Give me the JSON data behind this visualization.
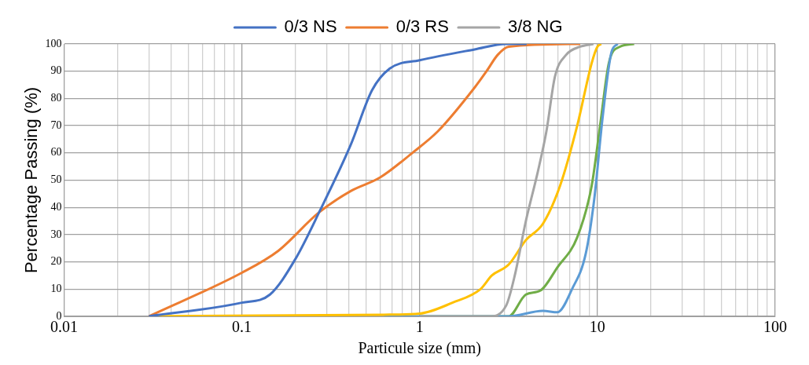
{
  "chart_data": {
    "type": "line",
    "xlabel": "Particule size (mm)",
    "ylabel": "Percentage Passing (%)",
    "log": "x",
    "xlim": [
      0.01,
      100
    ],
    "ylim": [
      0,
      100
    ],
    "xticks": [
      0.01,
      {
        "value": 0.02,
        "label": null
      },
      {
        "value": 0.03,
        "label": null
      },
      {
        "value": 0.04,
        "label": null
      },
      {
        "value": 0.05,
        "label": null
      },
      {
        "value": 0.06,
        "label": null
      },
      {
        "value": 0.07,
        "label": null
      },
      {
        "value": 0.08,
        "label": null
      },
      {
        "value": 0.09,
        "label": null
      },
      0.1,
      {
        "value": 0.2,
        "label": null
      },
      {
        "value": 0.3,
        "label": null
      },
      {
        "value": 0.4,
        "label": null
      },
      {
        "value": 0.5,
        "label": null
      },
      {
        "value": 0.6,
        "label": null
      },
      {
        "value": 0.7,
        "label": null
      },
      {
        "value": 0.8,
        "label": null
      },
      {
        "value": 0.9,
        "label": null
      },
      1,
      {
        "value": 2,
        "label": null
      },
      {
        "value": 3,
        "label": null
      },
      {
        "value": 4,
        "label": null
      },
      {
        "value": 5,
        "label": null
      },
      {
        "value": 6,
        "label": null
      },
      {
        "value": 7,
        "label": null
      },
      {
        "value": 8,
        "label": null
      },
      {
        "value": 9,
        "label": null
      },
      10,
      {
        "value": 20,
        "label": null
      },
      {
        "value": 30,
        "label": null
      },
      {
        "value": 40,
        "label": null
      },
      {
        "value": 50,
        "label": null
      },
      {
        "value": 60,
        "label": null
      },
      {
        "value": 70,
        "label": null
      },
      {
        "value": 80,
        "label": null
      },
      {
        "value": 90,
        "label": null
      },
      100
    ],
    "yticks": [
      0,
      10,
      20,
      30,
      40,
      50,
      60,
      70,
      80,
      90,
      100
    ],
    "grid": true,
    "legend": "top",
    "marker": "none",
    "line_style": "solid",
    "series": [
      {
        "name": "0/3 NS",
        "color": "#4472c4",
        "x": [
          0.03,
          0.1,
          0.144,
          0.2,
          0.276,
          0.41,
          0.54,
          0.68,
          1,
          2.04,
          3.07,
          4
        ],
        "values": [
          0,
          5,
          8,
          21,
          39,
          63,
          83,
          91,
          94,
          98,
          100,
          100
        ]
      },
      {
        "name": "0/3 RS",
        "color": "#ed7d31",
        "x": [
          0.03,
          0.1,
          0.16,
          0.27,
          0.41,
          0.6,
          0.91,
          1.27,
          2.04,
          2.38,
          2.75,
          3.17,
          8
        ],
        "values": [
          0,
          16,
          24,
          38,
          46,
          51,
          60,
          68,
          84,
          90,
          96,
          99,
          100
        ]
      },
      {
        "name": "3/8 NG",
        "color": "#a5a5a5",
        "x": [
          1,
          2.46,
          3.07,
          3.43,
          3.96,
          4.62,
          5.17,
          5.77,
          6.67,
          8,
          9.5
        ],
        "values": [
          0,
          0,
          4,
          15,
          35,
          53,
          68,
          88,
          96,
          99,
          100
        ]
      },
      {
        "color": "#ffc000",
        "x": [
          0.03,
          0.63,
          1,
          1.53,
          2.2,
          2.55,
          3.17,
          3.96,
          4.94,
          6.17,
          7.7,
          9.29,
          10,
          10.5
        ],
        "values": [
          0,
          0.6,
          1,
          5,
          10,
          15,
          19,
          28,
          34,
          48,
          70,
          93,
          99,
          100
        ]
      },
      {
        "color": "#5b9bd5",
        "x": [
          0.63,
          3.17,
          4.94,
          5.96,
          7.2,
          8.6,
          9.6,
          10.7,
          12,
          13
        ],
        "values": [
          0,
          0,
          2,
          1.5,
          10,
          23,
          43,
          73,
          97,
          100
        ]
      },
      {
        "color": "#70ad47",
        "x": [
          1,
          3.17,
          3.96,
          4.79,
          5.96,
          7.7,
          9.29,
          10.4,
          11.6,
          13.4,
          16.1
        ],
        "values": [
          0,
          0,
          8,
          9.5,
          18,
          29,
          48,
          71,
          93,
          99,
          100
        ]
      }
    ]
  }
}
